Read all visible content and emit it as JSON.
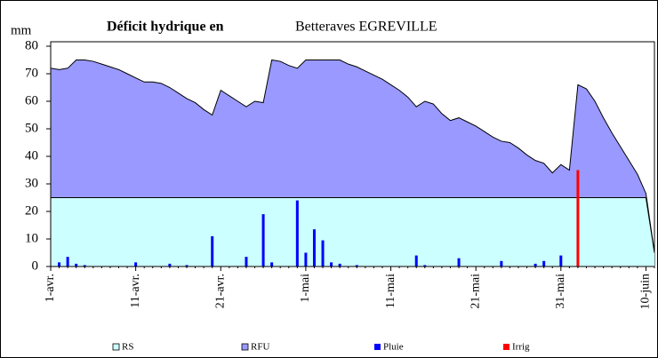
{
  "chart_data": {
    "type": "area-bar",
    "title": "Déficit hydrique en",
    "subtitle": "Betteraves EGREVILLE",
    "y_label": "mm",
    "categories": [
      "1-avr.",
      null,
      null,
      null,
      null,
      null,
      null,
      null,
      null,
      null,
      "11-avr.",
      null,
      null,
      null,
      null,
      null,
      null,
      null,
      null,
      null,
      "21-avr.",
      null,
      null,
      null,
      null,
      null,
      null,
      null,
      null,
      null,
      "1-mai",
      null,
      null,
      null,
      null,
      null,
      null,
      null,
      null,
      null,
      "11-mai",
      null,
      null,
      null,
      null,
      null,
      null,
      null,
      null,
      null,
      "21-mai",
      null,
      null,
      null,
      null,
      null,
      null,
      null,
      null,
      null,
      "31-mai",
      null,
      null,
      null,
      null,
      null,
      null,
      null,
      null,
      null,
      "10-juin",
      null
    ],
    "ylim": [
      0,
      80
    ],
    "yticks": [
      0,
      10,
      20,
      30,
      40,
      50,
      60,
      70,
      80
    ],
    "series": [
      {
        "name": "RS",
        "color": "#ccffff",
        "kind": "area",
        "values": [
          25,
          25,
          25,
          25,
          25,
          25,
          25,
          25,
          25,
          25,
          25,
          25,
          25,
          25,
          25,
          25,
          25,
          25,
          25,
          25,
          25,
          25,
          25,
          25,
          25,
          25,
          25,
          25,
          25,
          25,
          25,
          25,
          25,
          25,
          25,
          25,
          25,
          25,
          25,
          25,
          25,
          25,
          25,
          25,
          25,
          25,
          25,
          25,
          25,
          25,
          25,
          25,
          25,
          25,
          25,
          25,
          25,
          25,
          25,
          25,
          25,
          25,
          25,
          25,
          25,
          25,
          25,
          25,
          25,
          25,
          25,
          5
        ]
      },
      {
        "name": "RFU",
        "color": "#9999ff",
        "kind": "area",
        "values": [
          72,
          71.5,
          72,
          75,
          75,
          74.5,
          73.5,
          72.5,
          71.5,
          70,
          68.5,
          67,
          67,
          66.5,
          65,
          63,
          61,
          59.5,
          57,
          55,
          64,
          62,
          60,
          58,
          60,
          59.5,
          75,
          74.5,
          73,
          72,
          75,
          75,
          75,
          75,
          75,
          73.5,
          72.5,
          71,
          69.5,
          68,
          66,
          64,
          61.5,
          58,
          60,
          59,
          55.5,
          53,
          54,
          52.5,
          51,
          49,
          47,
          45.5,
          45,
          43,
          40.5,
          38.5,
          37.5,
          34,
          37,
          35,
          66,
          64.5,
          60,
          54,
          48.5,
          43.5,
          38.5,
          33.5,
          26.5,
          5
        ]
      },
      {
        "name": "Pluie",
        "color": "#0000ff",
        "kind": "bar",
        "values": [
          null,
          1.5,
          3.5,
          1,
          0.5,
          null,
          null,
          null,
          null,
          null,
          1.5,
          null,
          null,
          null,
          1,
          null,
          0.5,
          null,
          null,
          11,
          null,
          null,
          null,
          3.5,
          null,
          19,
          1.5,
          null,
          null,
          24,
          5,
          13.5,
          9.5,
          1.5,
          1,
          null,
          0.5,
          null,
          null,
          null,
          null,
          null,
          null,
          4,
          0.5,
          null,
          null,
          null,
          3,
          null,
          null,
          null,
          null,
          2,
          null,
          null,
          null,
          1,
          2,
          null,
          4,
          null,
          null,
          null,
          null,
          null,
          null,
          null,
          null,
          null,
          null,
          null
        ]
      },
      {
        "name": "Irrig",
        "color": "#ff0000",
        "kind": "bar",
        "values": [
          null,
          null,
          null,
          null,
          null,
          null,
          null,
          null,
          null,
          null,
          null,
          null,
          null,
          null,
          null,
          null,
          null,
          null,
          null,
          null,
          null,
          null,
          null,
          null,
          null,
          null,
          null,
          null,
          null,
          null,
          null,
          null,
          null,
          null,
          null,
          null,
          null,
          null,
          null,
          null,
          null,
          null,
          null,
          null,
          null,
          null,
          null,
          null,
          null,
          null,
          null,
          null,
          null,
          null,
          null,
          null,
          null,
          null,
          null,
          null,
          null,
          null,
          35,
          null,
          null,
          null,
          null,
          null,
          null,
          null,
          null,
          null
        ]
      }
    ]
  }
}
